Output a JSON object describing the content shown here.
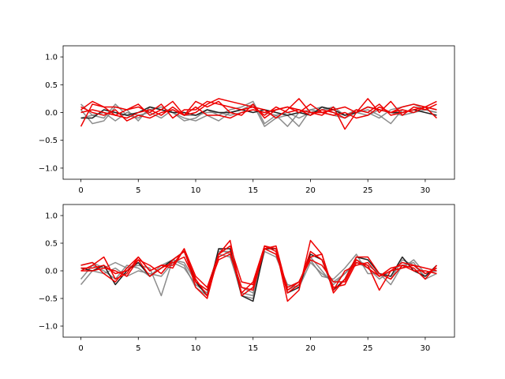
{
  "chart_data": [
    {
      "type": "line",
      "xlim": [
        -1.55,
        32.55
      ],
      "ylim": [
        -1.2,
        1.2
      ],
      "xticks": [
        0,
        5,
        10,
        15,
        20,
        25,
        30
      ],
      "yticks": [
        1.0,
        0.5,
        0.0,
        -0.5,
        -1.0
      ],
      "xtick_labels": [
        "0",
        "5",
        "10",
        "15",
        "20",
        "25",
        "30"
      ],
      "ytick_labels": [
        "1.0",
        "0.5",
        "0.0",
        "−0.5",
        "−1.0"
      ],
      "grid": false,
      "colors": {
        "gray_series": "#808080",
        "dark_series": "#202020",
        "red_series": "#ee0000"
      },
      "series": [
        {
          "color_key": "gray_series",
          "values": [
            0.15,
            -0.05,
            -0.1,
            0.15,
            -0.05,
            -0.1,
            0.05,
            0.1,
            0.0,
            -0.15,
            -0.1,
            0.05,
            -0.05,
            0.05,
            0.1,
            0.2,
            -0.2,
            -0.05,
            -0.25,
            0.0,
            0.05,
            0.1,
            0.0,
            -0.05,
            0.05,
            0.0,
            -0.1,
            0.05,
            0.1,
            0.15,
            0.05,
            0.0
          ]
        },
        {
          "color_key": "gray_series",
          "values": [
            0.05,
            -0.2,
            -0.15,
            0.1,
            0.05,
            -0.15,
            0.1,
            0.05,
            0.0,
            -0.1,
            -0.15,
            -0.05,
            -0.15,
            0.0,
            0.05,
            0.15,
            -0.25,
            -0.1,
            -0.05,
            -0.25,
            0.05,
            0.0,
            -0.05,
            -0.1,
            0.0,
            0.05,
            -0.05,
            -0.2,
            0.05,
            0.0,
            0.1,
            0.05
          ]
        },
        {
          "color_key": "gray_series",
          "values": [
            -0.1,
            -0.05,
            0.0,
            -0.15,
            0.0,
            -0.05,
            0.0,
            -0.1,
            0.05,
            -0.05,
            -0.05,
            0.0,
            0.0,
            -0.05,
            0.0,
            0.05,
            0.0,
            -0.05,
            0.0,
            -0.1,
            0.0,
            0.05,
            0.1,
            -0.05,
            0.0,
            -0.05,
            0.05,
            0.0,
            -0.05,
            0.0,
            0.05,
            0.0
          ]
        },
        {
          "color_key": "dark_series",
          "values": [
            -0.1,
            -0.1,
            0.05,
            0.0,
            -0.05,
            0.0,
            0.1,
            0.05,
            0.0,
            0.0,
            -0.05,
            0.05,
            0.0,
            0.0,
            0.05,
            0.0,
            0.05,
            0.0,
            -0.05,
            0.0,
            -0.05,
            0.1,
            0.05,
            -0.05,
            0.0,
            0.1,
            0.05,
            0.0,
            0.0,
            0.05,
            0.0,
            -0.05
          ]
        },
        {
          "color_key": "red_series",
          "values": [
            -0.25,
            0.15,
            0.1,
            -0.05,
            0.05,
            0.1,
            0.0,
            0.15,
            -0.1,
            0.05,
            0.05,
            0.2,
            0.15,
            0.1,
            0.05,
            0.1,
            0.05,
            -0.1,
            0.05,
            0.25,
            0.0,
            -0.05,
            0.1,
            -0.3,
            0.0,
            0.1,
            0.05,
            0.0,
            0.1,
            0.15,
            0.1,
            0.2
          ]
        },
        {
          "color_key": "red_series",
          "values": [
            0.05,
            0.2,
            0.1,
            0.1,
            0.05,
            0.15,
            -0.05,
            0.05,
            0.2,
            -0.05,
            0.2,
            0.1,
            0.2,
            0.0,
            -0.05,
            0.15,
            -0.1,
            0.05,
            0.1,
            0.0,
            0.15,
            0.0,
            0.05,
            0.1,
            0.0,
            0.25,
            0.0,
            0.2,
            -0.05,
            0.1,
            0.05,
            0.15
          ]
        },
        {
          "color_key": "red_series",
          "values": [
            0.0,
            0.05,
            0.0,
            -0.05,
            -0.1,
            0.0,
            0.05,
            -0.05,
            0.1,
            -0.05,
            0.0,
            0.15,
            0.25,
            0.2,
            0.15,
            0.1,
            -0.05,
            0.1,
            0.0,
            0.05,
            -0.05,
            0.05,
            0.0,
            -0.1,
            0.05,
            0.0,
            0.15,
            -0.05,
            0.0,
            0.05,
            0.1,
            0.05
          ]
        },
        {
          "color_key": "red_series",
          "values": [
            0.1,
            0.0,
            -0.05,
            0.05,
            -0.15,
            -0.05,
            -0.1,
            0.0,
            0.05,
            -0.05,
            0.1,
            -0.05,
            -0.05,
            -0.1,
            0.0,
            0.05,
            0.0,
            0.05,
            0.1,
            0.05,
            0.0,
            0.0,
            -0.05,
            0.0,
            -0.1,
            -0.05,
            0.1,
            0.0,
            0.05,
            0.0,
            0.1,
            -0.1
          ]
        }
      ]
    },
    {
      "type": "line",
      "xlim": [
        -1.55,
        32.55
      ],
      "ylim": [
        -1.2,
        1.2
      ],
      "xticks": [
        0,
        5,
        10,
        15,
        20,
        25,
        30
      ],
      "yticks": [
        1.0,
        0.5,
        0.0,
        -0.5,
        -1.0
      ],
      "xtick_labels": [
        "0",
        "5",
        "10",
        "15",
        "20",
        "25",
        "30"
      ],
      "ytick_labels": [
        "1.0",
        "0.5",
        "0.0",
        "−0.5",
        "−1.0"
      ],
      "grid": false,
      "colors": {
        "gray_series": "#808080",
        "dark_series": "#202020",
        "red_series": "#ee0000"
      },
      "series": [
        {
          "color_key": "gray_series",
          "values": [
            0.1,
            0.15,
            0.05,
            0.15,
            0.05,
            0.1,
            0.05,
            -0.45,
            0.2,
            0.1,
            -0.3,
            -0.45,
            0.4,
            0.3,
            -0.45,
            -0.5,
            0.4,
            0.3,
            -0.3,
            -0.2,
            0.2,
            -0.1,
            -0.15,
            0.05,
            0.3,
            -0.05,
            -0.05,
            -0.25,
            0.1,
            0.15,
            -0.15,
            -0.05
          ]
        },
        {
          "color_key": "gray_series",
          "values": [
            -0.25,
            0.0,
            -0.05,
            0.05,
            -0.1,
            0.0,
            -0.05,
            -0.1,
            0.15,
            0.05,
            -0.25,
            -0.4,
            0.3,
            0.25,
            -0.4,
            -0.45,
            0.35,
            0.25,
            -0.25,
            -0.3,
            0.15,
            -0.05,
            -0.2,
            -0.05,
            0.15,
            0.05,
            -0.15,
            0.0,
            0.05,
            0.2,
            -0.05,
            0.0
          ]
        },
        {
          "color_key": "gray_series",
          "values": [
            -0.15,
            0.1,
            0.0,
            -0.15,
            0.1,
            0.05,
            -0.1,
            0.1,
            0.2,
            0.15,
            -0.2,
            -0.35,
            0.35,
            0.35,
            -0.3,
            -0.4,
            0.45,
            0.35,
            -0.35,
            -0.25,
            0.25,
            0.0,
            -0.25,
            -0.05,
            0.2,
            0.1,
            -0.05,
            -0.15,
            0.2,
            0.1,
            -0.1,
            0.05
          ]
        },
        {
          "color_key": "dark_series",
          "values": [
            0.05,
            0.0,
            0.1,
            -0.25,
            0.0,
            0.15,
            -0.1,
            0.05,
            0.2,
            0.35,
            -0.2,
            -0.45,
            0.4,
            0.4,
            -0.45,
            -0.55,
            0.4,
            0.4,
            -0.4,
            -0.3,
            0.3,
            0.2,
            -0.35,
            -0.15,
            0.25,
            0.2,
            -0.05,
            -0.1,
            0.25,
            0.0,
            -0.1,
            0.1
          ]
        },
        {
          "color_key": "red_series",
          "values": [
            0.0,
            0.1,
            0.25,
            -0.15,
            -0.05,
            0.25,
            0.0,
            0.1,
            0.05,
            0.4,
            -0.3,
            -0.5,
            0.3,
            0.55,
            -0.45,
            -0.3,
            0.45,
            0.4,
            -0.55,
            -0.35,
            0.55,
            0.3,
            -0.4,
            -0.15,
            0.25,
            0.25,
            -0.05,
            -0.15,
            0.1,
            0.05,
            -0.15,
            0.1
          ]
        },
        {
          "color_key": "red_series",
          "values": [
            0.05,
            0.05,
            0.1,
            -0.05,
            0.0,
            0.2,
            0.1,
            -0.05,
            0.2,
            0.35,
            -0.15,
            -0.45,
            0.25,
            0.35,
            -0.4,
            -0.2,
            0.45,
            0.35,
            -0.4,
            -0.25,
            0.35,
            0.2,
            -0.3,
            -0.25,
            0.15,
            0.1,
            -0.35,
            0.0,
            0.05,
            0.1,
            -0.05,
            0.05
          ]
        },
        {
          "color_key": "red_series",
          "values": [
            0.1,
            0.15,
            -0.05,
            -0.2,
            0.05,
            0.25,
            0.0,
            0.1,
            0.1,
            0.4,
            -0.1,
            -0.3,
            0.3,
            0.45,
            -0.2,
            -0.25,
            0.4,
            0.45,
            -0.35,
            -0.2,
            0.25,
            0.3,
            -0.35,
            0.0,
            0.1,
            0.15,
            -0.1,
            0.0,
            0.15,
            0.1,
            0.05,
            0.0
          ]
        },
        {
          "color_key": "red_series",
          "values": [
            0.0,
            0.0,
            0.05,
            0.0,
            -0.1,
            0.2,
            -0.1,
            0.05,
            0.15,
            0.25,
            -0.2,
            -0.35,
            0.2,
            0.3,
            -0.3,
            -0.35,
            0.4,
            0.3,
            -0.3,
            -0.2,
            0.2,
            0.1,
            -0.2,
            -0.2,
            0.2,
            0.05,
            -0.1,
            0.05,
            0.1,
            0.0,
            0.0,
            -0.05
          ]
        }
      ]
    }
  ]
}
